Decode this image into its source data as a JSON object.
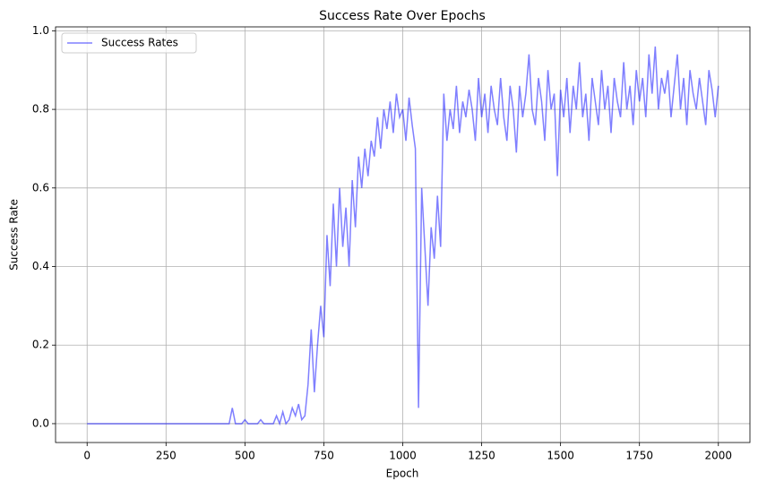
{
  "chart_data": {
    "type": "line",
    "title": "Success Rate Over Epochs",
    "xlabel": "Epoch",
    "ylabel": "Success Rate",
    "x": [
      0,
      10,
      20,
      30,
      40,
      50,
      60,
      70,
      80,
      90,
      100,
      110,
      120,
      130,
      140,
      150,
      160,
      170,
      180,
      190,
      200,
      210,
      220,
      230,
      240,
      250,
      260,
      270,
      280,
      290,
      300,
      310,
      320,
      330,
      340,
      350,
      360,
      370,
      380,
      390,
      400,
      410,
      420,
      430,
      440,
      450,
      460,
      470,
      480,
      490,
      500,
      510,
      520,
      530,
      540,
      550,
      560,
      570,
      580,
      590,
      600,
      610,
      620,
      630,
      640,
      650,
      660,
      670,
      680,
      690,
      700,
      710,
      720,
      730,
      740,
      750,
      760,
      770,
      780,
      790,
      800,
      810,
      820,
      830,
      840,
      850,
      860,
      870,
      880,
      890,
      900,
      910,
      920,
      930,
      940,
      950,
      960,
      970,
      980,
      990,
      1000,
      1010,
      1020,
      1030,
      1040,
      1050,
      1060,
      1070,
      1080,
      1090,
      1100,
      1110,
      1120,
      1130,
      1140,
      1150,
      1160,
      1170,
      1180,
      1190,
      1200,
      1210,
      1220,
      1230,
      1240,
      1250,
      1260,
      1270,
      1280,
      1290,
      1300,
      1310,
      1320,
      1330,
      1340,
      1350,
      1360,
      1370,
      1380,
      1390,
      1400,
      1410,
      1420,
      1430,
      1440,
      1450,
      1460,
      1470,
      1480,
      1490,
      1500,
      1510,
      1520,
      1530,
      1540,
      1550,
      1560,
      1570,
      1580,
      1590,
      1600,
      1610,
      1620,
      1630,
      1640,
      1650,
      1660,
      1670,
      1680,
      1690,
      1700,
      1710,
      1720,
      1730,
      1740,
      1750,
      1760,
      1770,
      1780,
      1790,
      1800,
      1810,
      1820,
      1830,
      1840,
      1850,
      1860,
      1870,
      1880,
      1890,
      1900,
      1910,
      1920,
      1930,
      1940,
      1950,
      1960,
      1970,
      1980,
      1990,
      2000
    ],
    "series": [
      {
        "name": "Success Rates",
        "color": "#0000ff",
        "values": [
          0,
          0,
          0,
          0,
          0,
          0,
          0,
          0,
          0,
          0,
          0,
          0,
          0,
          0,
          0,
          0,
          0,
          0,
          0,
          0,
          0,
          0,
          0,
          0,
          0,
          0,
          0,
          0,
          0,
          0,
          0,
          0,
          0,
          0,
          0,
          0,
          0,
          0,
          0,
          0,
          0,
          0,
          0,
          0,
          0,
          0,
          0.04,
          0,
          0,
          0,
          0.01,
          0,
          0,
          0,
          0,
          0.01,
          0,
          0,
          0,
          0,
          0.02,
          0,
          0.03,
          0,
          0.01,
          0.04,
          0.02,
          0.05,
          0.01,
          0.02,
          0.1,
          0.24,
          0.08,
          0.2,
          0.3,
          0.22,
          0.48,
          0.35,
          0.56,
          0.4,
          0.6,
          0.45,
          0.55,
          0.4,
          0.62,
          0.5,
          0.68,
          0.6,
          0.7,
          0.63,
          0.72,
          0.68,
          0.78,
          0.7,
          0.8,
          0.75,
          0.82,
          0.74,
          0.84,
          0.78,
          0.8,
          0.72,
          0.83,
          0.76,
          0.7,
          0.04,
          0.6,
          0.45,
          0.3,
          0.5,
          0.42,
          0.58,
          0.45,
          0.84,
          0.72,
          0.8,
          0.75,
          0.86,
          0.74,
          0.82,
          0.78,
          0.85,
          0.8,
          0.72,
          0.88,
          0.78,
          0.84,
          0.74,
          0.86,
          0.8,
          0.76,
          0.88,
          0.78,
          0.72,
          0.86,
          0.8,
          0.69,
          0.86,
          0.78,
          0.84,
          0.94,
          0.8,
          0.76,
          0.88,
          0.82,
          0.72,
          0.9,
          0.8,
          0.84,
          0.63,
          0.85,
          0.78,
          0.88,
          0.74,
          0.86,
          0.8,
          0.92,
          0.78,
          0.84,
          0.72,
          0.88,
          0.82,
          0.76,
          0.9,
          0.8,
          0.86,
          0.74,
          0.88,
          0.82,
          0.78,
          0.92,
          0.8,
          0.86,
          0.76,
          0.9,
          0.82,
          0.88,
          0.78,
          0.94,
          0.84,
          0.96,
          0.8,
          0.88,
          0.84,
          0.9,
          0.78,
          0.86,
          0.94,
          0.8,
          0.88,
          0.76,
          0.9,
          0.84,
          0.8,
          0.88,
          0.82,
          0.76,
          0.9,
          0.85,
          0.78,
          0.86
        ]
      }
    ],
    "xlim": [
      -100,
      2100
    ],
    "ylim": [
      -0.048,
      1.01
    ],
    "xticks": [
      0,
      250,
      500,
      750,
      1000,
      1250,
      1500,
      1750,
      2000
    ],
    "yticks": [
      {
        "value": 0,
        "label": "0.0"
      },
      0.2,
      0.4,
      0.6,
      0.8,
      {
        "value": 1,
        "label": "1.0"
      }
    ],
    "grid": true,
    "legend": "upper left"
  }
}
